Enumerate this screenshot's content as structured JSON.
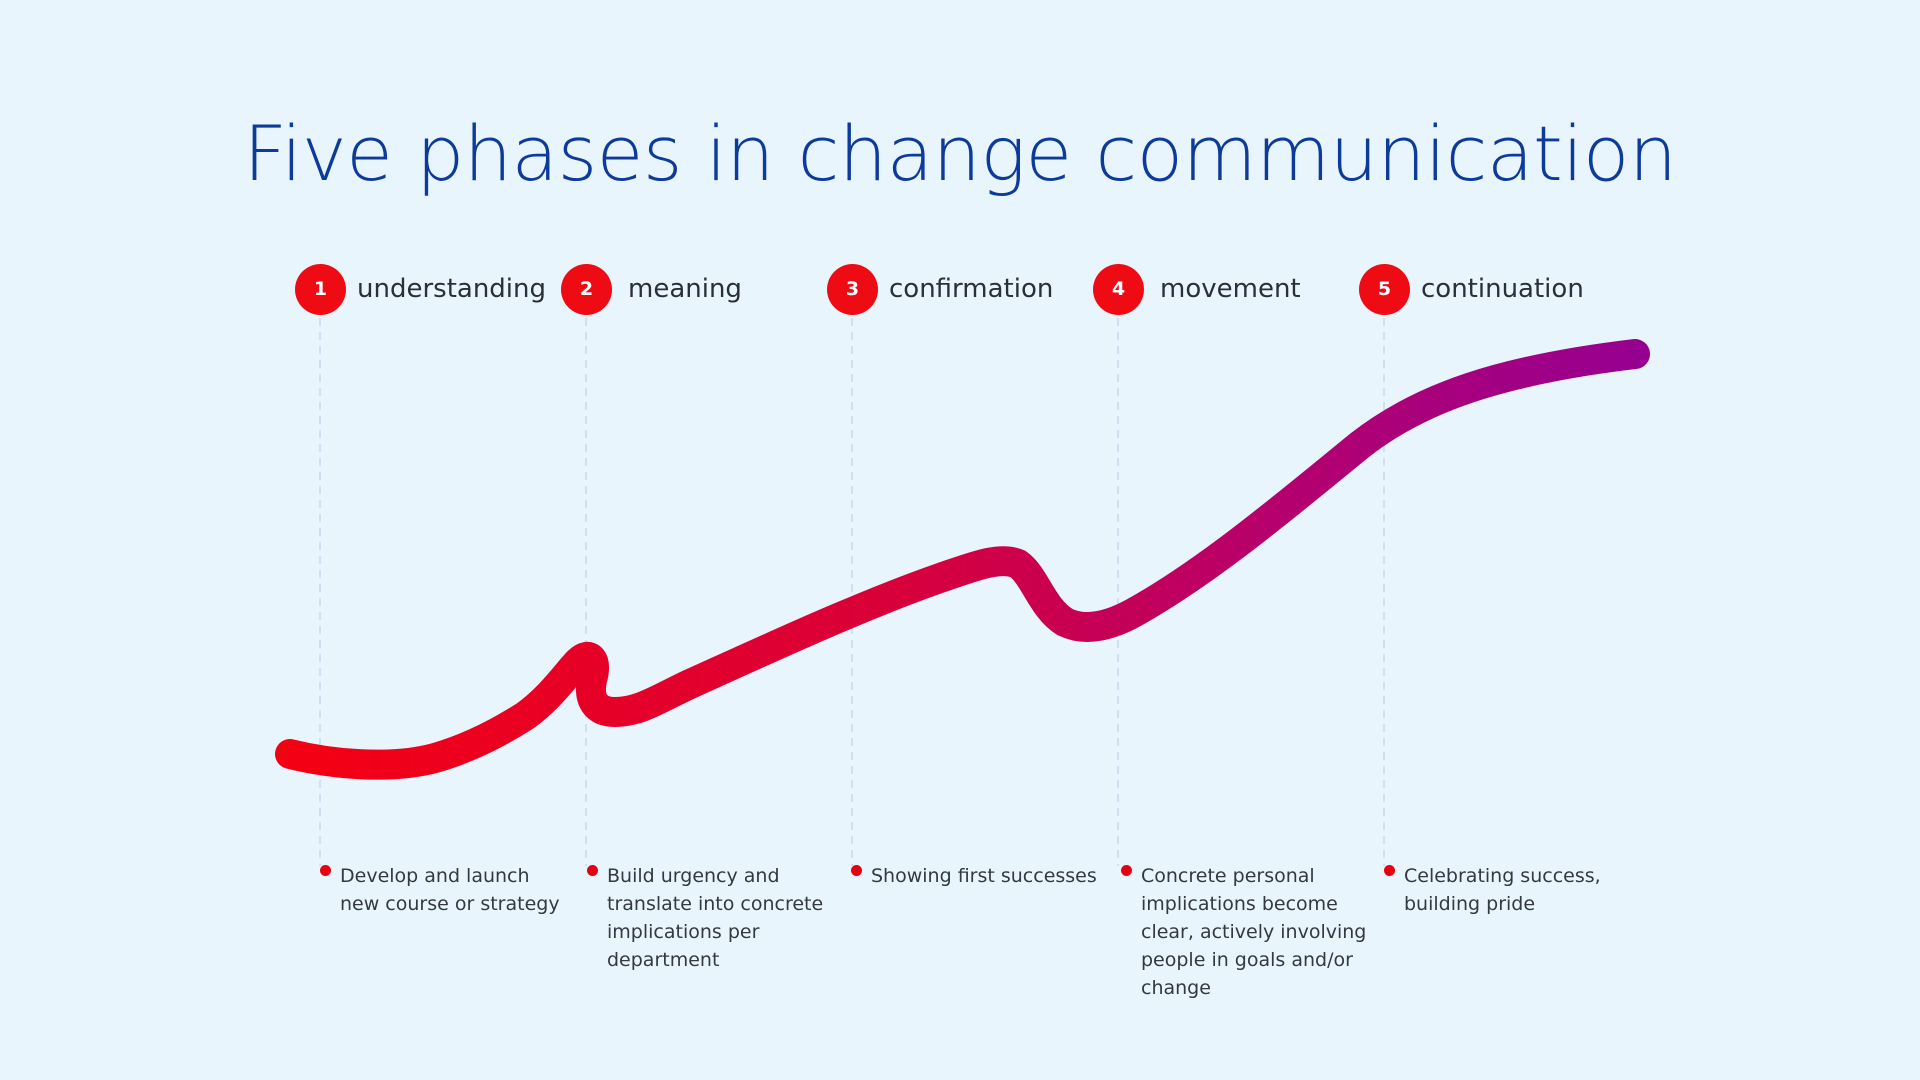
{
  "title": "Five phases in change communication",
  "colors": {
    "background": "#e9f5fd",
    "title": "#0d3b9a",
    "accent_red": "#ee0b14",
    "curve_start": "#f50012",
    "curve_mid": "#d2003c",
    "curve_end": "#960090",
    "guide_line": "#cfe0f0"
  },
  "phases": [
    {
      "number": "1",
      "label": "understanding",
      "description": "Develop and launch new course or strategy"
    },
    {
      "number": "2",
      "label": "meaning",
      "description": "Build urgency and translate into concrete implications per department"
    },
    {
      "number": "3",
      "label": "confirmation",
      "description": "Showing first successes"
    },
    {
      "number": "4",
      "label": "movement",
      "description": "Concrete personal implications become clear, actively involving people in goals and/or change"
    },
    {
      "number": "5",
      "label": "continuation",
      "description": "Celebrating success, building pride"
    }
  ]
}
